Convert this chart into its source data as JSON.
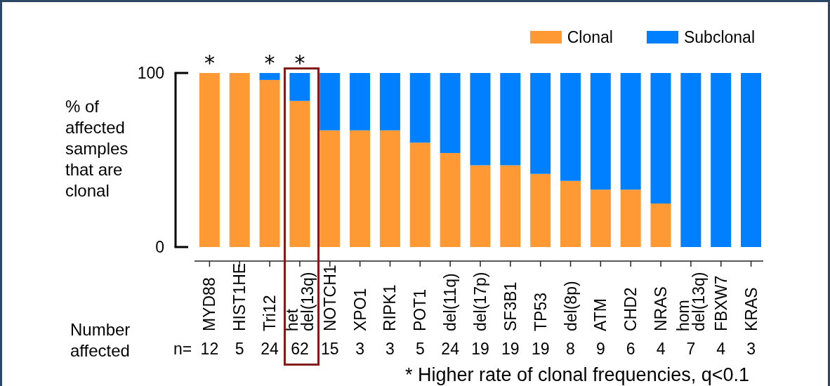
{
  "chart_data": {
    "type": "bar",
    "categories": [
      "MYD88",
      "HIST1HE",
      "Tri12",
      "het del(13q)",
      "NOTCH1",
      "XPO1",
      "RIPK1",
      "POT1",
      "del(11q)",
      "del(17p)",
      "SF3B1",
      "TP53",
      "del(8p)",
      "ATM",
      "CHD2",
      "NRAS",
      "hom del(13q)",
      "FBXW7",
      "KRAS"
    ],
    "series": [
      {
        "name": "Clonal",
        "color": "#ff9933",
        "values": [
          100,
          100,
          96,
          84,
          67,
          67,
          67,
          60,
          54,
          47,
          47,
          42,
          38,
          33,
          33,
          25,
          0,
          0,
          0
        ]
      },
      {
        "name": "Subclonal",
        "color": "#0080ff",
        "values": [
          0,
          0,
          4,
          16,
          33,
          33,
          33,
          40,
          46,
          53,
          53,
          58,
          62,
          67,
          67,
          75,
          100,
          100,
          100
        ]
      }
    ],
    "stacked": true,
    "ylabel": "% of affected samples that are clonal",
    "ylim": [
      0,
      100
    ],
    "yticks": [
      0,
      100
    ],
    "legend": "top right",
    "annotations": [
      "Number affected",
      "n=",
      "12",
      "5",
      "24",
      "62",
      "15",
      "3",
      "3",
      "5",
      "24",
      "19",
      "19",
      "19",
      "8",
      "9",
      "6",
      "4",
      "7",
      "4",
      "3",
      {
        "text": "*",
        "x": "MYD88",
        "y": 100
      },
      {
        "text": "*",
        "x": "Tri12",
        "y": 100
      },
      {
        "text": "*",
        "x": "het del(13q)",
        "y": 100
      },
      "* Higher rate of clonal frequencies, q<0.1"
    ]
  }
}
